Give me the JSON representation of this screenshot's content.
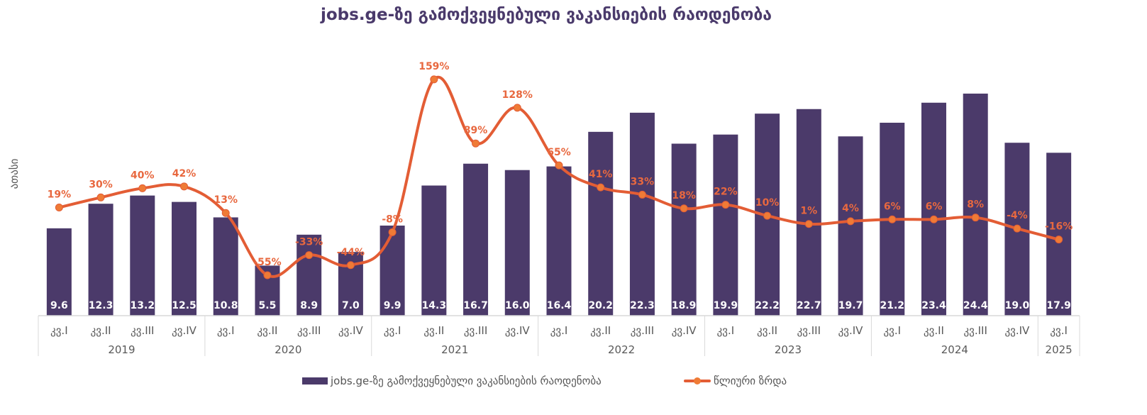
{
  "chart_data": {
    "type": "bar",
    "title": "jobs.ge-ზე გამოქვეყნებული ვაკანსიების რაოდენობა",
    "ylabel": "ათასი",
    "xlabel": "",
    "categories": [
      "კვ.I",
      "კვ.II",
      "კვ.III",
      "კვ.IV",
      "კვ.I",
      "კვ.II",
      "კვ.III",
      "კვ.IV",
      "კვ.I",
      "კვ.II",
      "კვ.III",
      "კვ.IV",
      "კვ.I",
      "კვ.II",
      "კვ.III",
      "კვ.IV",
      "კვ.I",
      "კვ.II",
      "კვ.III",
      "კვ.IV",
      "კვ.I",
      "კვ.II",
      "კვ.III",
      "კვ.IV",
      "კვ.I"
    ],
    "groups": [
      {
        "label": "2019",
        "count": 4
      },
      {
        "label": "2020",
        "count": 4
      },
      {
        "label": "2021",
        "count": 4
      },
      {
        "label": "2022",
        "count": 4
      },
      {
        "label": "2023",
        "count": 4
      },
      {
        "label": "2024",
        "count": 4
      },
      {
        "label": "2025",
        "count": 1
      }
    ],
    "series": [
      {
        "name": "jobs.ge-ზე გამოქვეყნებული ვაკანსიების რაოდენობა",
        "type": "bar",
        "color": "#4b3a6a",
        "values": [
          9.6,
          12.3,
          13.2,
          12.5,
          10.8,
          5.5,
          8.9,
          7.0,
          9.9,
          14.3,
          16.7,
          16.0,
          16.4,
          20.2,
          22.3,
          18.9,
          19.9,
          22.2,
          22.7,
          19.7,
          21.2,
          23.4,
          24.4,
          19.0,
          17.9
        ],
        "labels": [
          "9.6",
          "12.3",
          "13.2",
          "12.5",
          "10.8",
          "5.5",
          "8.9",
          "7.0",
          "9.9",
          "14.3",
          "16.7",
          "16.0",
          "16.4",
          "20.2",
          "22.3",
          "18.9",
          "19.9",
          "22.2",
          "22.7",
          "19.7",
          "21.2",
          "23.4",
          "24.4",
          "19.0",
          "17.9"
        ]
      },
      {
        "name": "წლიური ზრდა",
        "type": "line",
        "color": "#e35d35",
        "marker_color": "#ef7b36",
        "smooth": true,
        "values": [
          19,
          30,
          40,
          42,
          13,
          -55,
          -33,
          -44,
          -8,
          159,
          89,
          128,
          65,
          41,
          33,
          18,
          22,
          10,
          1,
          4,
          6,
          6,
          8,
          -4,
          -16
        ],
        "labels": [
          "19%",
          "30%",
          "40%",
          "42%",
          "13%",
          "-55%",
          "-33%",
          "-44%",
          "-8%",
          "159%",
          "89%",
          "128%",
          "65%",
          "41%",
          "33%",
          "18%",
          "22%",
          "10%",
          "1%",
          "4%",
          "6%",
          "6%",
          "8%",
          "-4%",
          "-16%"
        ]
      }
    ],
    "ylim": [
      0,
      25
    ],
    "y2lim": [
      -55,
      159
    ],
    "grid": false,
    "legend_position": "bottom"
  },
  "legend": {
    "bar_label": "jobs.ge-ზე გამოქვეყნებული ვაკანსიების რაოდენობა",
    "line_label": "წლიური ზრდა"
  }
}
